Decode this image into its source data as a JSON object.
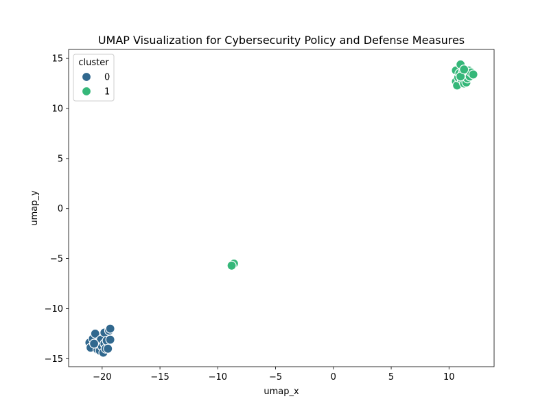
{
  "chart_data": {
    "type": "scatter",
    "title": "UMAP Visualization for Cybersecurity Policy and Defense Measures",
    "xlabel": "umap_x",
    "ylabel": "umap_y",
    "xlim": [
      -22.9,
      13.9
    ],
    "ylim": [
      -15.8,
      15.9
    ],
    "xticks": [
      -20,
      -15,
      -10,
      -5,
      0,
      5,
      10
    ],
    "yticks": [
      -15,
      -10,
      -5,
      0,
      5,
      10,
      15
    ],
    "grid": false,
    "legend": {
      "title": "cluster",
      "placement": "top-left",
      "entries": [
        {
          "label": "0",
          "color": "#31688e"
        },
        {
          "label": "1",
          "color": "#35b779"
        }
      ]
    },
    "series": [
      {
        "name": "0",
        "color": "#31688e",
        "points": [
          [
            -21.1,
            -13.4
          ],
          [
            -21.0,
            -13.9
          ],
          [
            -20.8,
            -13.0
          ],
          [
            -20.6,
            -12.5
          ],
          [
            -20.5,
            -13.6
          ],
          [
            -20.4,
            -14.1
          ],
          [
            -20.3,
            -13.3
          ],
          [
            -20.2,
            -14.2
          ],
          [
            -20.1,
            -13.1
          ],
          [
            -20.0,
            -13.8
          ],
          [
            -19.9,
            -14.4
          ],
          [
            -19.8,
            -13.5
          ],
          [
            -19.8,
            -12.4
          ],
          [
            -19.7,
            -14.0
          ],
          [
            -19.6,
            -13.2
          ],
          [
            -19.5,
            -14.0
          ],
          [
            -19.4,
            -12.2
          ],
          [
            -19.3,
            -12.0
          ],
          [
            -19.3,
            -13.1
          ],
          [
            -20.7,
            -13.5
          ]
        ]
      },
      {
        "name": "1",
        "color": "#35b779",
        "points": [
          [
            -8.6,
            -5.5
          ],
          [
            -8.8,
            -5.7
          ],
          [
            10.6,
            13.8
          ],
          [
            10.6,
            12.7
          ],
          [
            10.7,
            12.3
          ],
          [
            10.8,
            13.1
          ],
          [
            10.9,
            13.5
          ],
          [
            11.0,
            14.4
          ],
          [
            11.1,
            12.9
          ],
          [
            11.2,
            13.6
          ],
          [
            11.3,
            12.5
          ],
          [
            11.4,
            13.3
          ],
          [
            11.5,
            12.6
          ],
          [
            11.6,
            13.0
          ],
          [
            11.7,
            13.8
          ],
          [
            11.8,
            13.2
          ],
          [
            11.9,
            13.6
          ],
          [
            12.1,
            13.4
          ],
          [
            11.0,
            13.2
          ],
          [
            11.3,
            13.9
          ]
        ]
      }
    ]
  }
}
